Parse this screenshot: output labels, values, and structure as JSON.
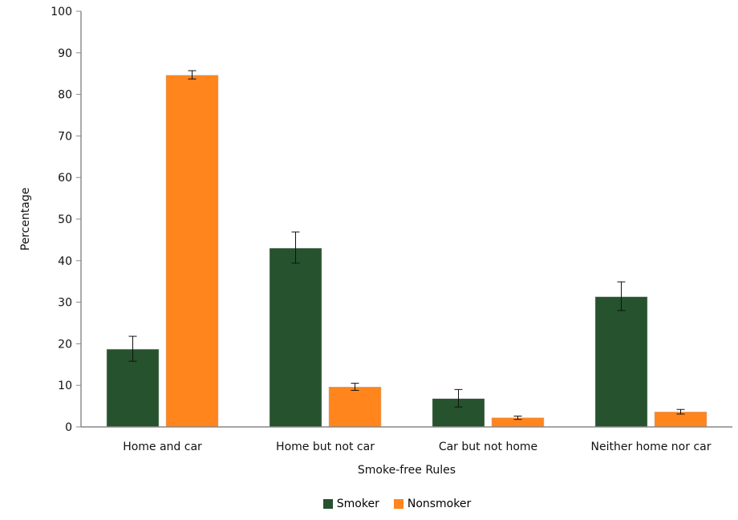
{
  "chart_data": {
    "type": "bar",
    "title": "",
    "xlabel": "Smoke-free Rules",
    "ylabel": "Percentage",
    "ylim": [
      0,
      100
    ],
    "yticks": [
      0,
      10,
      20,
      30,
      40,
      50,
      60,
      70,
      80,
      90,
      100
    ],
    "grid": false,
    "legend_position": "bottom",
    "categories": [
      "Home and car",
      "Home but not car",
      "Car but not home",
      "Neither home nor car"
    ],
    "series": [
      {
        "name": "Smoker",
        "color": "#26522e",
        "values": [
          18.7,
          43.0,
          6.8,
          31.3
        ],
        "error_low": [
          15.8,
          39.4,
          4.8,
          28.0
        ],
        "error_high": [
          21.8,
          46.9,
          9.0,
          34.9
        ]
      },
      {
        "name": "Nonsmoker",
        "color": "#ff851c",
        "values": [
          84.6,
          9.6,
          2.2,
          3.6
        ],
        "error_low": [
          83.7,
          8.8,
          1.8,
          3.1
        ],
        "error_high": [
          85.7,
          10.5,
          2.6,
          4.2
        ]
      }
    ]
  },
  "legend": {
    "items": [
      {
        "label": "Smoker",
        "color": "#26522e"
      },
      {
        "label": "Nonsmoker",
        "color": "#ff851c"
      }
    ]
  }
}
